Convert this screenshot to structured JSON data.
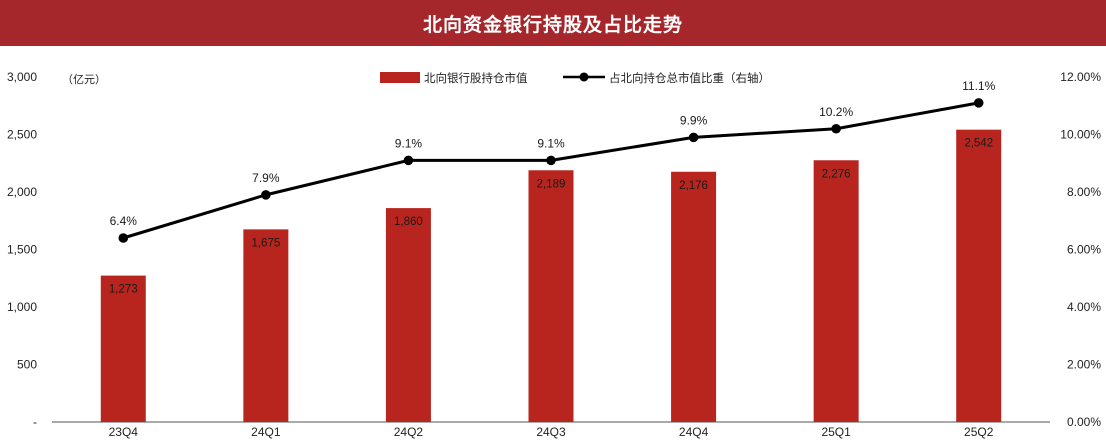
{
  "header": {
    "title": "北向资金银行持股及占比走势"
  },
  "chart_data": {
    "type": "bar",
    "title": "北向资金银行持股及占比走势",
    "categories": [
      "23Q4",
      "24Q1",
      "24Q2",
      "24Q3",
      "24Q4",
      "25Q1",
      "25Q2"
    ],
    "series": [
      {
        "name": "北向银行股持仓市值",
        "type": "bar",
        "axis": "left",
        "values": [
          1273,
          1675,
          1860,
          2189,
          2176,
          2276,
          2542
        ],
        "labels": [
          "1,273",
          "1,675",
          "1,860",
          "2,189",
          "2,176",
          "2,276",
          "2,542"
        ]
      },
      {
        "name": "占北向持仓总市值比重（右轴）",
        "type": "line",
        "axis": "right",
        "values": [
          6.4,
          7.9,
          9.1,
          9.1,
          9.9,
          10.2,
          11.1
        ],
        "labels": [
          "6.4%",
          "7.9%",
          "9.1%",
          "9.1%",
          "9.9%",
          "10.2%",
          "11.1%"
        ]
      }
    ],
    "y_left": {
      "unit": "（亿元）",
      "ylim": [
        0,
        3000
      ],
      "ticks": [
        "-",
        "500",
        "1,000",
        "1,500",
        "2,000",
        "2,500",
        "3,000"
      ]
    },
    "y_right": {
      "ylim": [
        0,
        12
      ],
      "ticks": [
        "0.00%",
        "2.00%",
        "4.00%",
        "6.00%",
        "8.00%",
        "10.00%",
        "12.00%"
      ]
    },
    "legend_position": "top-center",
    "grid": false,
    "colors": {
      "bar": "#b8251f",
      "line": "#000000",
      "banner": "#a5262b"
    }
  }
}
